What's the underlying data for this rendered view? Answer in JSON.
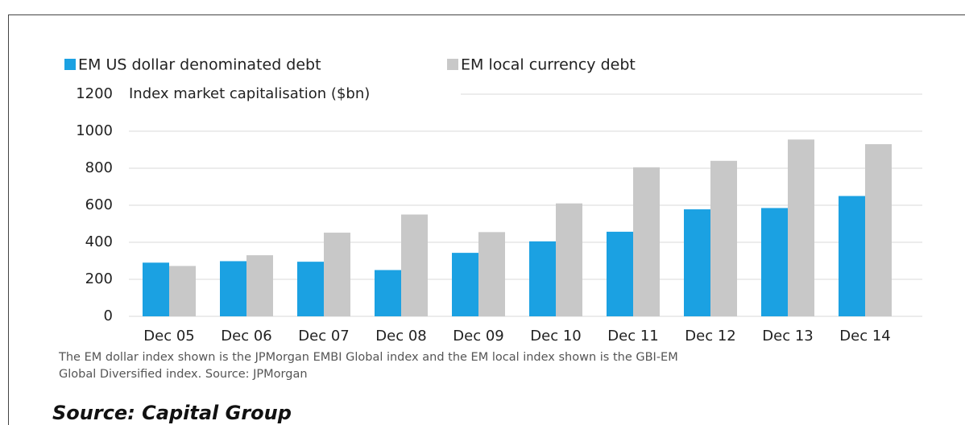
{
  "chart_data": {
    "type": "bar",
    "axis_label": "Index market capitalisation ($bn)",
    "categories": [
      "Dec 05",
      "Dec 06",
      "Dec 07",
      "Dec 08",
      "Dec 09",
      "Dec 10",
      "Dec 11",
      "Dec 12",
      "Dec 13",
      "Dec 14"
    ],
    "series": [
      {
        "name": "EM US dollar denominated debt",
        "color": "#1ba1e2",
        "values": [
          290,
          298,
          295,
          250,
          343,
          405,
          457,
          578,
          585,
          650
        ]
      },
      {
        "name": "EM local currency debt",
        "color": "#c8c8c8",
        "values": [
          272,
          330,
          452,
          550,
          455,
          610,
          805,
          840,
          955,
          930
        ]
      }
    ],
    "ylim": [
      0,
      1200
    ],
    "yticks": [
      0,
      200,
      400,
      600,
      800,
      1000,
      1200
    ],
    "grid": true,
    "note": [
      "The EM dollar index shown is the JPMorgan EMBI Global index and the EM local index shown is the GBI-EM",
      "Global Diversified index. Source: JPMorgan"
    ],
    "source": "Source: Capital Group"
  }
}
